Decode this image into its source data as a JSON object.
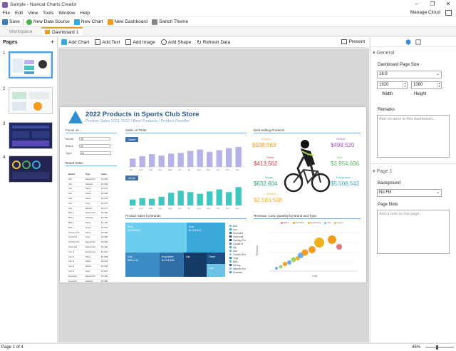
{
  "window": {
    "title": "Sample - Navicat Charts Creator",
    "controls": [
      "–",
      "❐",
      "✕"
    ]
  },
  "menu": {
    "items": [
      "File",
      "Edit",
      "View",
      "Tools",
      "Window",
      "Help"
    ],
    "manage_cloud": "Manage Cloud"
  },
  "toolbar": {
    "save": "Save",
    "new_data_source": "New Data Source",
    "new_chart": "New Chart",
    "new_dashboard": "New Dashboard",
    "switch_theme": "Switch Theme"
  },
  "tabs": {
    "workspace": "Workspace",
    "dashboard": "Dashboard 1"
  },
  "pages": {
    "title": "Pages",
    "add": "+",
    "items": [
      "1",
      "2",
      "3",
      "4"
    ]
  },
  "canvas_toolbar": {
    "add_chart": "Add Chart",
    "add_text": "Add Text",
    "add_image": "Add Image",
    "add_shape": "Add Shape",
    "refresh_data": "Refresh Data",
    "present": "Present"
  },
  "dashboard": {
    "title": "2022 Products in Sports Club Store",
    "subtitle": "Product Sales 2021-2022 / Best Products / Product Reseller",
    "focus_on": "Focus on...",
    "filters": [
      {
        "label": "Month",
        "value": "All"
      },
      {
        "label": "Brand",
        "value": "All"
      },
      {
        "label": "Type",
        "value": "All"
      }
    ],
    "brand_sales_title": "Brand Sales",
    "brand_table": {
      "headers": [
        "Brand",
        "Type",
        "Sales"
      ],
      "rows": [
        [
          "Ask",
          "Equipment",
          "$1,006"
        ],
        [
          "Ask",
          "Glasses",
          "$1,096"
        ],
        [
          "Ask",
          "Pants",
          "$1,047"
        ],
        [
          "Ask",
          "Shoes",
          "$1,306"
        ],
        [
          "Ask",
          "Shirts",
          "$1,076"
        ],
        [
          "Ask",
          "Tops",
          "$1,047"
        ],
        [
          "Ask",
          "Wheels",
          "$1,477"
        ],
        [
          "Bolt p",
          "Equipment",
          "$1,059"
        ],
        [
          "Bolt p",
          "Glasses",
          "$1,266"
        ],
        [
          "Bolt p",
          "Pants",
          "$1,100"
        ],
        [
          "Bolt p",
          "Shoes",
          "$1,043"
        ],
        [
          "Clothes Pro",
          "Pants",
          "$1,080"
        ],
        [
          "Cyclist M",
          "Tops",
          "$1,060"
        ],
        [
          "Cycling Pro",
          "Equipment",
          "$1,040"
        ],
        [
          "Gear bell",
          "Equipment",
          "$1,200"
        ],
        [
          "Iron H",
          "Equipment",
          "$1,216"
        ],
        [
          "Iron H",
          "Pants",
          "$1,088"
        ],
        [
          "Iron H",
          "Shirts",
          "$1,047"
        ],
        [
          "Iron H",
          "Shoes",
          "$1,046"
        ],
        [
          "Iron H",
          "Tops",
          "$1,016"
        ],
        [
          "Keyvalue",
          "Equipment",
          "$1,206"
        ],
        [
          "Keyvalue",
          "Glasses",
          "$1,006"
        ],
        [
          "Keyvalue",
          "Pants",
          "$1,046"
        ]
      ]
    },
    "sales_vs_order_title": "Sales vs Order",
    "sales_label": "Sales",
    "order_label": "Order",
    "months": [
      "Jan",
      "Feb",
      "Mar",
      "Apr",
      "May",
      "Jun",
      "Jul",
      "Aug",
      "Sep",
      "Oct",
      "Nov",
      "Dec"
    ],
    "sales_values": [
      25,
      32,
      38,
      34,
      40,
      42,
      48,
      52,
      45,
      50,
      56,
      60
    ],
    "order_values": [
      18,
      22,
      20,
      26,
      38,
      44,
      40,
      35,
      42,
      48,
      40,
      55
    ],
    "best_selling_title": "Best-Selling Products",
    "best_selling": [
      {
        "category": "Gloves",
        "value": "$598,563",
        "color": "#f29c1f"
      },
      {
        "category": "Helmet",
        "value": "$498,520",
        "color": "#a259c4"
      },
      {
        "category": "Pants",
        "value": "$413,562",
        "color": "#d9363e"
      },
      {
        "category": "Tops",
        "value": "$3,954,696",
        "color": "#5cb85c"
      },
      {
        "category": "Socks",
        "value": "$632,604",
        "color": "#2e9e6b"
      },
      {
        "category": "Equipment",
        "value": "$5,508,543",
        "color": "#3aa8c2"
      },
      {
        "category": "Wheels",
        "value": "$2,583,598",
        "color": "#f2b01f"
      }
    ],
    "treemap_title": "Product Sales by Brands",
    "treemap_cells": [
      {
        "label": "Bolt",
        "value": "$3,098,803",
        "color": "#6dcdee"
      },
      {
        "label": "Iron",
        "value": "$1,916,813",
        "color": "#3aa8d8"
      },
      {
        "label": "Keyvalue",
        "value": "$1,316,896",
        "color": "#2f6fa8"
      },
      {
        "label": "Ask",
        "value": "$950,140",
        "color": "#3b8bc4"
      },
      {
        "label": "Gear",
        "value": "",
        "color": "#1b4f86"
      },
      {
        "label": "Alp",
        "value": "",
        "color": "#153a66"
      },
      {
        "label": "Cyc",
        "value": "",
        "color": "#6cc3e6"
      },
      {
        "label": "",
        "value": "",
        "color": "#8fd4ee"
      },
      {
        "label": "",
        "value": "",
        "color": "#4aa4d4"
      }
    ],
    "treemap_legend": [
      "Bolt",
      "Iron",
      "Keyvalue",
      "Gear bell",
      "Cycling Pro",
      "Cyclist M",
      "Alp",
      "Ask",
      "Clothes Pro",
      "Tops",
      "Bike",
      "Strong",
      "Wheels Pro",
      "Everlast"
    ],
    "bubble_title": "Revenue, Cost, Quantity by Brand and Type",
    "bubble_legend": [
      "Bolt p",
      "Keyvalue",
      "Equipment",
      "Ask",
      "Iron H"
    ],
    "bubble_xlabel": "Cost",
    "bubble_ylabel": "Revenue"
  },
  "properties": {
    "general": "General",
    "page_size_label": "Dashboard Page Size",
    "page_size_value": "16:9",
    "width_value": "1920",
    "height_value": "1080",
    "width_label": "Width",
    "height_label": "Height",
    "remarks_label": "Remarks",
    "remarks_placeholder": "Add remarks to this dashboard...",
    "page_section": "Page 1",
    "background_label": "Background",
    "background_value": "No Fill",
    "page_note_label": "Page Note",
    "page_note_placeholder": "Add a note to this page..."
  },
  "status": {
    "page": "Page 1 of 4",
    "zoom": "45%"
  }
}
